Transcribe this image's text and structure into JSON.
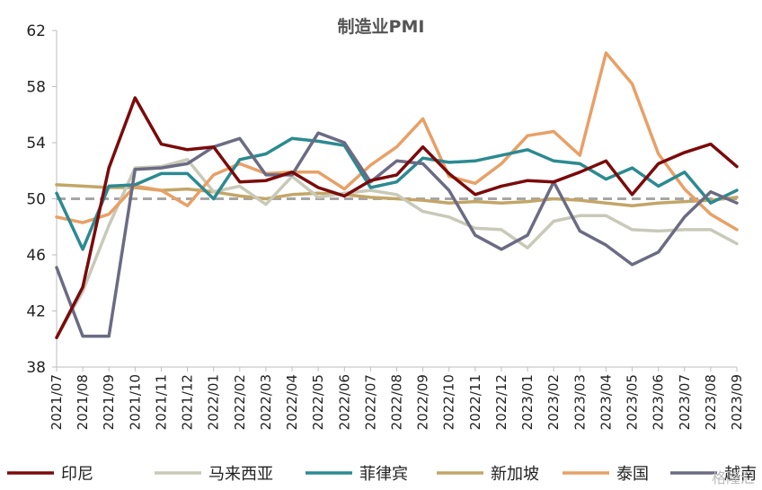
{
  "chart_data": {
    "type": "line",
    "title": "制造业PMI",
    "xlabel": "",
    "ylabel": "",
    "ylim": [
      38,
      62
    ],
    "yticks": [
      38,
      42,
      46,
      50,
      54,
      58,
      62
    ],
    "reference_line": 50,
    "x": [
      "2021/07",
      "2021/08",
      "2021/09",
      "2021/10",
      "2021/11",
      "2021/12",
      "2022/01",
      "2022/02",
      "2022/03",
      "2022/04",
      "2022/05",
      "2022/06",
      "2022/07",
      "2022/08",
      "2022/09",
      "2022/10",
      "2022/11",
      "2022/12",
      "2023/01",
      "2023/02",
      "2023/03",
      "2023/04",
      "2023/05",
      "2023/06",
      "2023/07",
      "2023/08",
      "2023/09"
    ],
    "legend_position": "bottom",
    "series": [
      {
        "name": "印尼",
        "color": "#7b0a0a",
        "values": [
          40.1,
          43.7,
          52.2,
          57.2,
          53.9,
          53.5,
          53.7,
          51.2,
          51.3,
          51.9,
          50.8,
          50.2,
          51.3,
          51.7,
          53.7,
          51.8,
          50.3,
          50.9,
          51.3,
          51.2,
          51.9,
          52.7,
          50.3,
          52.5,
          53.3,
          53.9,
          52.3
        ]
      },
      {
        "name": "马来西亚",
        "color": "#c9c9b8",
        "values": [
          40.1,
          43.4,
          48.1,
          52.2,
          52.3,
          52.8,
          50.5,
          50.9,
          49.6,
          51.6,
          50.1,
          50.4,
          50.6,
          50.3,
          49.1,
          48.7,
          47.9,
          47.8,
          46.5,
          48.4,
          48.8,
          48.8,
          47.8,
          47.7,
          47.8,
          47.8,
          46.8
        ]
      },
      {
        "name": "菲律宾",
        "color": "#2b8a91",
        "values": [
          50.4,
          46.4,
          50.9,
          51.0,
          51.8,
          51.8,
          50.0,
          52.8,
          53.2,
          54.3,
          54.1,
          53.8,
          50.8,
          51.2,
          52.9,
          52.6,
          52.7,
          53.1,
          53.5,
          52.7,
          52.5,
          51.4,
          52.2,
          50.9,
          51.9,
          49.7,
          50.6
        ]
      },
      {
        "name": "新加坡",
        "color": "#c2a667",
        "values": [
          51.0,
          50.9,
          50.8,
          50.8,
          50.6,
          50.7,
          50.5,
          50.2,
          50.0,
          50.3,
          50.4,
          50.3,
          50.1,
          50.0,
          49.9,
          49.7,
          49.8,
          49.7,
          49.8,
          50.0,
          49.9,
          49.7,
          49.5,
          49.7,
          49.8,
          49.9,
          50.1
        ]
      },
      {
        "name": "泰国",
        "color": "#e8a066",
        "values": [
          48.7,
          48.3,
          48.9,
          50.9,
          50.6,
          49.5,
          51.7,
          52.5,
          51.8,
          51.9,
          51.9,
          50.7,
          52.4,
          53.7,
          55.7,
          51.6,
          51.1,
          52.5,
          54.5,
          54.8,
          53.1,
          60.4,
          58.2,
          53.2,
          50.7,
          48.9,
          47.8
        ]
      },
      {
        "name": "越南",
        "color": "#6b6b84",
        "values": [
          45.1,
          40.2,
          40.2,
          52.1,
          52.2,
          52.5,
          53.7,
          54.3,
          51.7,
          51.7,
          54.7,
          54.0,
          51.2,
          52.7,
          52.5,
          50.6,
          47.4,
          46.4,
          47.4,
          51.2,
          47.7,
          46.7,
          45.3,
          46.2,
          48.7,
          50.5,
          49.7
        ]
      }
    ]
  },
  "watermark": "格隆汇"
}
